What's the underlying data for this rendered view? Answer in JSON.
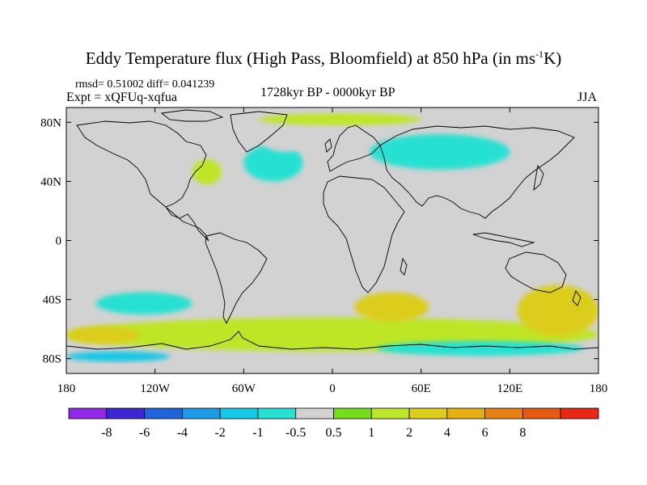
{
  "title": {
    "text_before_sup": "Eddy Temperature flux (High Pass, Bloomfield) at 850 hPa (in ms",
    "superscript": "-1",
    "text_after_sup": "K)"
  },
  "stats": "rmsd= 0.51002 diff= 0.041239",
  "experiment": "Expt = xQFUq-xqfua",
  "period": "1728kyr BP - 0000kyr BP",
  "season": "JJA",
  "map": {
    "projection": "cylindrical-equidistant",
    "lon_range": [
      -180,
      180
    ],
    "lat_range": [
      -90,
      90
    ],
    "x_ticks": [
      {
        "lon": -180,
        "label": "180"
      },
      {
        "lon": -120,
        "label": "120W"
      },
      {
        "lon": -60,
        "label": "60W"
      },
      {
        "lon": 0,
        "label": "0"
      },
      {
        "lon": 60,
        "label": "60E"
      },
      {
        "lon": 120,
        "label": "120E"
      },
      {
        "lon": 180,
        "label": "180"
      }
    ],
    "y_ticks": [
      {
        "lat": 80,
        "label": "80N"
      },
      {
        "lat": 40,
        "label": "40N"
      },
      {
        "lat": 0,
        "label": "0"
      },
      {
        "lat": -40,
        "label": "40S"
      },
      {
        "lat": -80,
        "label": "80S"
      }
    ],
    "background_color": "#d2d2d2",
    "coastline_color": "#000000"
  },
  "colorbar": {
    "colors": [
      "#9128e6",
      "#3c28d2",
      "#1e64dc",
      "#1e9be6",
      "#14c8e6",
      "#28e1d2",
      "#d2d2d2",
      "#78dc1e",
      "#bee628",
      "#dccd1e",
      "#e6af14",
      "#e68214",
      "#e65a14",
      "#e62814"
    ],
    "labels": [
      "-8",
      "-6",
      "-4",
      "-2",
      "-1",
      "-0.5",
      "0.5",
      "1",
      "2",
      "4",
      "6",
      "8"
    ]
  },
  "anomaly_regions": [
    {
      "name": "north-atlantic-negative",
      "level": -1,
      "lon": [
        -60,
        -20
      ],
      "lat": [
        40,
        65
      ]
    },
    {
      "name": "greenland-negative",
      "level": -0.5,
      "lon": [
        -50,
        -15
      ],
      "lat": [
        60,
        83
      ]
    },
    {
      "name": "eurasia-negative",
      "level": -1,
      "lon": [
        25,
        120
      ],
      "lat": [
        48,
        72
      ]
    },
    {
      "name": "arctic-positive",
      "level": 1,
      "lon": [
        -50,
        60
      ],
      "lat": [
        78,
        86
      ]
    },
    {
      "name": "north-america-positive",
      "level": 1,
      "lon": [
        -95,
        -75
      ],
      "lat": [
        38,
        55
      ]
    },
    {
      "name": "southern-ocean-positive",
      "level": 1,
      "lon": [
        -180,
        180
      ],
      "lat": [
        -75,
        -52
      ]
    },
    {
      "name": "south-pacific-positive-core",
      "level": 2,
      "lon": [
        -180,
        -130
      ],
      "lat": [
        -70,
        -58
      ]
    },
    {
      "name": "south-indian-positive",
      "level": 2,
      "lon": [
        15,
        65
      ],
      "lat": [
        -55,
        -35
      ]
    },
    {
      "name": "australia-south-positive",
      "level": 2,
      "lon": [
        125,
        180
      ],
      "lat": [
        -65,
        -30
      ]
    },
    {
      "name": "south-pacific-negative",
      "level": -1,
      "lon": [
        -160,
        -95
      ],
      "lat": [
        -50,
        -35
      ]
    },
    {
      "name": "antarctic-coast-negative",
      "level": -1,
      "lon": [
        30,
        170
      ],
      "lat": [
        -78,
        -68
      ]
    },
    {
      "name": "ross-sea-negative",
      "level": -2,
      "lon": [
        -180,
        -110
      ],
      "lat": [
        -82,
        -75
      ]
    }
  ]
}
